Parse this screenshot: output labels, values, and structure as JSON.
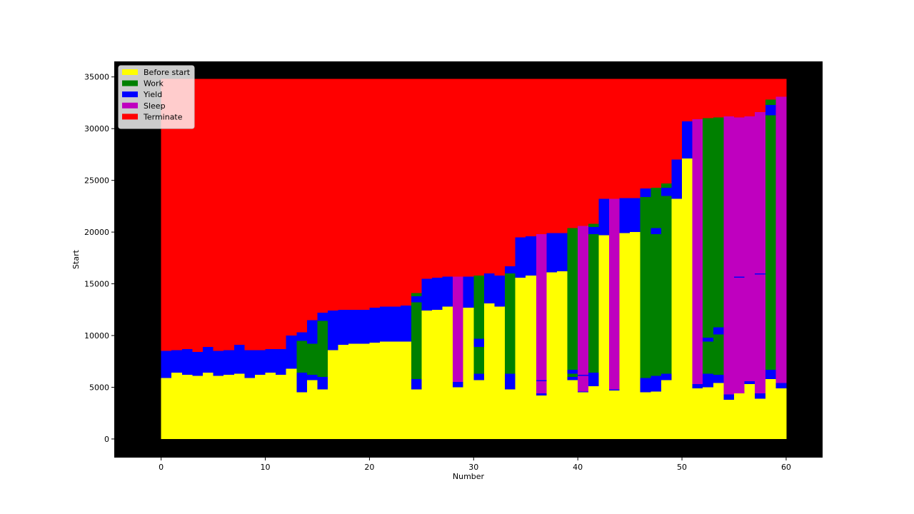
{
  "chart_data": {
    "type": "bar",
    "title": "",
    "xlabel": "Number",
    "ylabel": "Start",
    "xlim": [
      -4.5,
      63.5
    ],
    "ylim": [
      -1800,
      36500
    ],
    "xticks": [
      0,
      10,
      20,
      30,
      40,
      50,
      60
    ],
    "yticks": [
      0,
      5000,
      10000,
      15000,
      20000,
      25000,
      30000,
      35000
    ],
    "grid": false,
    "background": "#000000",
    "legend_position": "top-left",
    "legend": [
      {
        "name": "Before start",
        "color": "#ffff00"
      },
      {
        "name": "Work",
        "color": "#008000"
      },
      {
        "name": "Yield",
        "color": "#0000ff"
      },
      {
        "name": "Sleep",
        "color": "#bf00bf"
      },
      {
        "name": "Terminate",
        "color": "#ff0000"
      }
    ],
    "end": 34800,
    "bars": [
      {
        "n": 0,
        "segments": [
          [
            "Before start",
            5900
          ],
          [
            "Yield",
            8500
          ]
        ]
      },
      {
        "n": 1,
        "segments": [
          [
            "Before start",
            6400
          ],
          [
            "Yield",
            8600
          ]
        ]
      },
      {
        "n": 2,
        "segments": [
          [
            "Before start",
            6200
          ],
          [
            "Yield",
            8700
          ]
        ]
      },
      {
        "n": 3,
        "segments": [
          [
            "Before start",
            6100
          ],
          [
            "Yield",
            8400
          ]
        ]
      },
      {
        "n": 4,
        "segments": [
          [
            "Before start",
            6400
          ],
          [
            "Yield",
            8900
          ]
        ]
      },
      {
        "n": 5,
        "segments": [
          [
            "Before start",
            6100
          ],
          [
            "Yield",
            8500
          ]
        ]
      },
      {
        "n": 6,
        "segments": [
          [
            "Before start",
            6200
          ],
          [
            "Yield",
            8600
          ]
        ]
      },
      {
        "n": 7,
        "segments": [
          [
            "Before start",
            6300
          ],
          [
            "Yield",
            9100
          ]
        ]
      },
      {
        "n": 8,
        "segments": [
          [
            "Before start",
            5900
          ],
          [
            "Yield",
            8600
          ]
        ]
      },
      {
        "n": 9,
        "segments": [
          [
            "Before start",
            6200
          ],
          [
            "Yield",
            8600
          ]
        ]
      },
      {
        "n": 10,
        "segments": [
          [
            "Before start",
            6400
          ],
          [
            "Yield",
            8700
          ]
        ]
      },
      {
        "n": 11,
        "segments": [
          [
            "Before start",
            6200
          ],
          [
            "Yield",
            8700
          ]
        ]
      },
      {
        "n": 12,
        "segments": [
          [
            "Before start",
            6800
          ],
          [
            "Yield",
            10000
          ]
        ]
      },
      {
        "n": 13,
        "segments": [
          [
            "Before start",
            4500
          ],
          [
            "Yield",
            6400
          ],
          [
            "Work",
            9500
          ],
          [
            "Yield",
            10300
          ]
        ]
      },
      {
        "n": 14,
        "segments": [
          [
            "Before start",
            5700
          ],
          [
            "Yield",
            6200
          ],
          [
            "Work",
            9200
          ],
          [
            "Yield",
            11500
          ]
        ]
      },
      {
        "n": 15,
        "segments": [
          [
            "Before start",
            4800
          ],
          [
            "Yield",
            6000
          ],
          [
            "Work",
            11400
          ],
          [
            "Yield",
            12200
          ]
        ]
      },
      {
        "n": 16,
        "segments": [
          [
            "Before start",
            8600
          ],
          [
            "Yield",
            12400
          ]
        ]
      },
      {
        "n": 17,
        "segments": [
          [
            "Before start",
            9100
          ],
          [
            "Yield",
            12500
          ]
        ]
      },
      {
        "n": 18,
        "segments": [
          [
            "Before start",
            9200
          ],
          [
            "Yield",
            12500
          ]
        ]
      },
      {
        "n": 19,
        "segments": [
          [
            "Before start",
            9200
          ],
          [
            "Yield",
            12500
          ]
        ]
      },
      {
        "n": 20,
        "segments": [
          [
            "Before start",
            9300
          ],
          [
            "Yield",
            12700
          ]
        ]
      },
      {
        "n": 21,
        "segments": [
          [
            "Before start",
            9400
          ],
          [
            "Yield",
            12800
          ]
        ]
      },
      {
        "n": 22,
        "segments": [
          [
            "Before start",
            9400
          ],
          [
            "Yield",
            12800
          ]
        ]
      },
      {
        "n": 23,
        "segments": [
          [
            "Before start",
            9400
          ],
          [
            "Yield",
            12900
          ]
        ]
      },
      {
        "n": 24,
        "segments": [
          [
            "Before start",
            4800
          ],
          [
            "Yield",
            5800
          ],
          [
            "Work",
            13200
          ],
          [
            "Yield",
            13800
          ],
          [
            "Work",
            14100
          ]
        ]
      },
      {
        "n": 25,
        "segments": [
          [
            "Before start",
            12400
          ],
          [
            "Yield",
            15500
          ]
        ]
      },
      {
        "n": 26,
        "segments": [
          [
            "Before start",
            12500
          ],
          [
            "Yield",
            15600
          ]
        ]
      },
      {
        "n": 27,
        "segments": [
          [
            "Before start",
            12800
          ],
          [
            "Yield",
            15700
          ]
        ]
      },
      {
        "n": 28,
        "segments": [
          [
            "Before start",
            5000
          ],
          [
            "Yield",
            5500
          ],
          [
            "Sleep",
            15700
          ]
        ]
      },
      {
        "n": 29,
        "segments": [
          [
            "Before start",
            12700
          ],
          [
            "Yield",
            15700
          ]
        ]
      },
      {
        "n": 30,
        "segments": [
          [
            "Before start",
            5700
          ],
          [
            "Yield",
            6300
          ],
          [
            "Work",
            8900
          ],
          [
            "Yield",
            9700
          ],
          [
            "Work",
            15800
          ]
        ]
      },
      {
        "n": 31,
        "segments": [
          [
            "Before start",
            13100
          ],
          [
            "Yield",
            16000
          ]
        ]
      },
      {
        "n": 32,
        "segments": [
          [
            "Before start",
            12800
          ],
          [
            "Yield",
            15800
          ]
        ]
      },
      {
        "n": 33,
        "segments": [
          [
            "Before start",
            4800
          ],
          [
            "Yield",
            6300
          ],
          [
            "Work",
            16000
          ],
          [
            "Yield",
            16700
          ]
        ]
      },
      {
        "n": 34,
        "segments": [
          [
            "Before start",
            15600
          ],
          [
            "Yield",
            19500
          ]
        ]
      },
      {
        "n": 35,
        "segments": [
          [
            "Before start",
            15800
          ],
          [
            "Yield",
            19600
          ]
        ]
      },
      {
        "n": 36,
        "segments": [
          [
            "Before start",
            4200
          ],
          [
            "Yield",
            4400
          ],
          [
            "Sleep",
            5600
          ],
          [
            "Yield",
            5700
          ],
          [
            "Sleep",
            19800
          ]
        ]
      },
      {
        "n": 37,
        "segments": [
          [
            "Before start",
            16100
          ],
          [
            "Yield",
            19900
          ]
        ]
      },
      {
        "n": 38,
        "segments": [
          [
            "Before start",
            16200
          ],
          [
            "Yield",
            19900
          ]
        ]
      },
      {
        "n": 39,
        "segments": [
          [
            "Before start",
            5700
          ],
          [
            "Yield",
            6000
          ],
          [
            "Work",
            6300
          ],
          [
            "Yield",
            6700
          ],
          [
            "Work",
            20400
          ]
        ]
      },
      {
        "n": 40,
        "segments": [
          [
            "Before start",
            4500
          ],
          [
            "Yield",
            4600
          ],
          [
            "Sleep",
            6100
          ],
          [
            "Yield",
            6200
          ],
          [
            "Sleep",
            20600
          ]
        ]
      },
      {
        "n": 41,
        "segments": [
          [
            "Before start",
            5100
          ],
          [
            "Yield",
            6400
          ],
          [
            "Work",
            19800
          ],
          [
            "Yield",
            20500
          ],
          [
            "Work",
            20800
          ]
        ]
      },
      {
        "n": 42,
        "segments": [
          [
            "Before start",
            19700
          ],
          [
            "Yield",
            23200
          ]
        ]
      },
      {
        "n": 43,
        "segments": [
          [
            "Before start",
            4700
          ],
          [
            "Yield",
            4800
          ],
          [
            "Sleep",
            23200
          ]
        ]
      },
      {
        "n": 44,
        "segments": [
          [
            "Before start",
            19900
          ],
          [
            "Yield",
            23300
          ]
        ]
      },
      {
        "n": 45,
        "segments": [
          [
            "Before start",
            20000
          ],
          [
            "Yield",
            23300
          ]
        ]
      },
      {
        "n": 46,
        "segments": [
          [
            "Before start",
            4500
          ],
          [
            "Yield",
            5900
          ],
          [
            "Work",
            23400
          ],
          [
            "Yield",
            24200
          ]
        ]
      },
      {
        "n": 47,
        "segments": [
          [
            "Before start",
            4600
          ],
          [
            "Yield",
            6100
          ],
          [
            "Work",
            19800
          ],
          [
            "Yield",
            20400
          ],
          [
            "Work",
            24300
          ]
        ]
      },
      {
        "n": 48,
        "segments": [
          [
            "Before start",
            5700
          ],
          [
            "Yield",
            6300
          ],
          [
            "Work",
            23500
          ],
          [
            "Yield",
            24300
          ],
          [
            "Work",
            24700
          ]
        ]
      },
      {
        "n": 49,
        "segments": [
          [
            "Before start",
            23200
          ],
          [
            "Yield",
            27000
          ]
        ]
      },
      {
        "n": 50,
        "segments": [
          [
            "Before start",
            27100
          ],
          [
            "Yield",
            30700
          ]
        ]
      },
      {
        "n": 51,
        "segments": [
          [
            "Before start",
            4900
          ],
          [
            "Yield",
            5300
          ],
          [
            "Sleep",
            30900
          ]
        ]
      },
      {
        "n": 52,
        "segments": [
          [
            "Before start",
            5000
          ],
          [
            "Yield",
            6300
          ],
          [
            "Work",
            9400
          ],
          [
            "Yield",
            9800
          ],
          [
            "Work",
            31000
          ]
        ]
      },
      {
        "n": 53,
        "segments": [
          [
            "Before start",
            5400
          ],
          [
            "Yield",
            6200
          ],
          [
            "Work",
            10100
          ],
          [
            "Yield",
            10800
          ],
          [
            "Work",
            31100
          ]
        ]
      },
      {
        "n": 54,
        "segments": [
          [
            "Before start",
            3800
          ],
          [
            "Yield",
            4300
          ],
          [
            "Sleep",
            31200
          ]
        ]
      },
      {
        "n": 55,
        "segments": [
          [
            "Before start",
            4400
          ],
          [
            "Sleep",
            15600
          ],
          [
            "Yield",
            15700
          ],
          [
            "Sleep",
            31100
          ]
        ]
      },
      {
        "n": 56,
        "segments": [
          [
            "Before start",
            5300
          ],
          [
            "Yield",
            5600
          ],
          [
            "Sleep",
            31200
          ]
        ]
      },
      {
        "n": 57,
        "segments": [
          [
            "Before start",
            3900
          ],
          [
            "Yield",
            4400
          ],
          [
            "Sleep",
            15900
          ],
          [
            "Yield",
            16000
          ],
          [
            "Sleep",
            31600
          ]
        ]
      },
      {
        "n": 58,
        "segments": [
          [
            "Before start",
            5800
          ],
          [
            "Yield",
            6700
          ],
          [
            "Work",
            31300
          ],
          [
            "Yield",
            32300
          ],
          [
            "Work",
            32800
          ]
        ]
      },
      {
        "n": 59,
        "segments": [
          [
            "Before start",
            4900
          ],
          [
            "Yield",
            5400
          ],
          [
            "Sleep",
            33100
          ]
        ]
      }
    ]
  }
}
